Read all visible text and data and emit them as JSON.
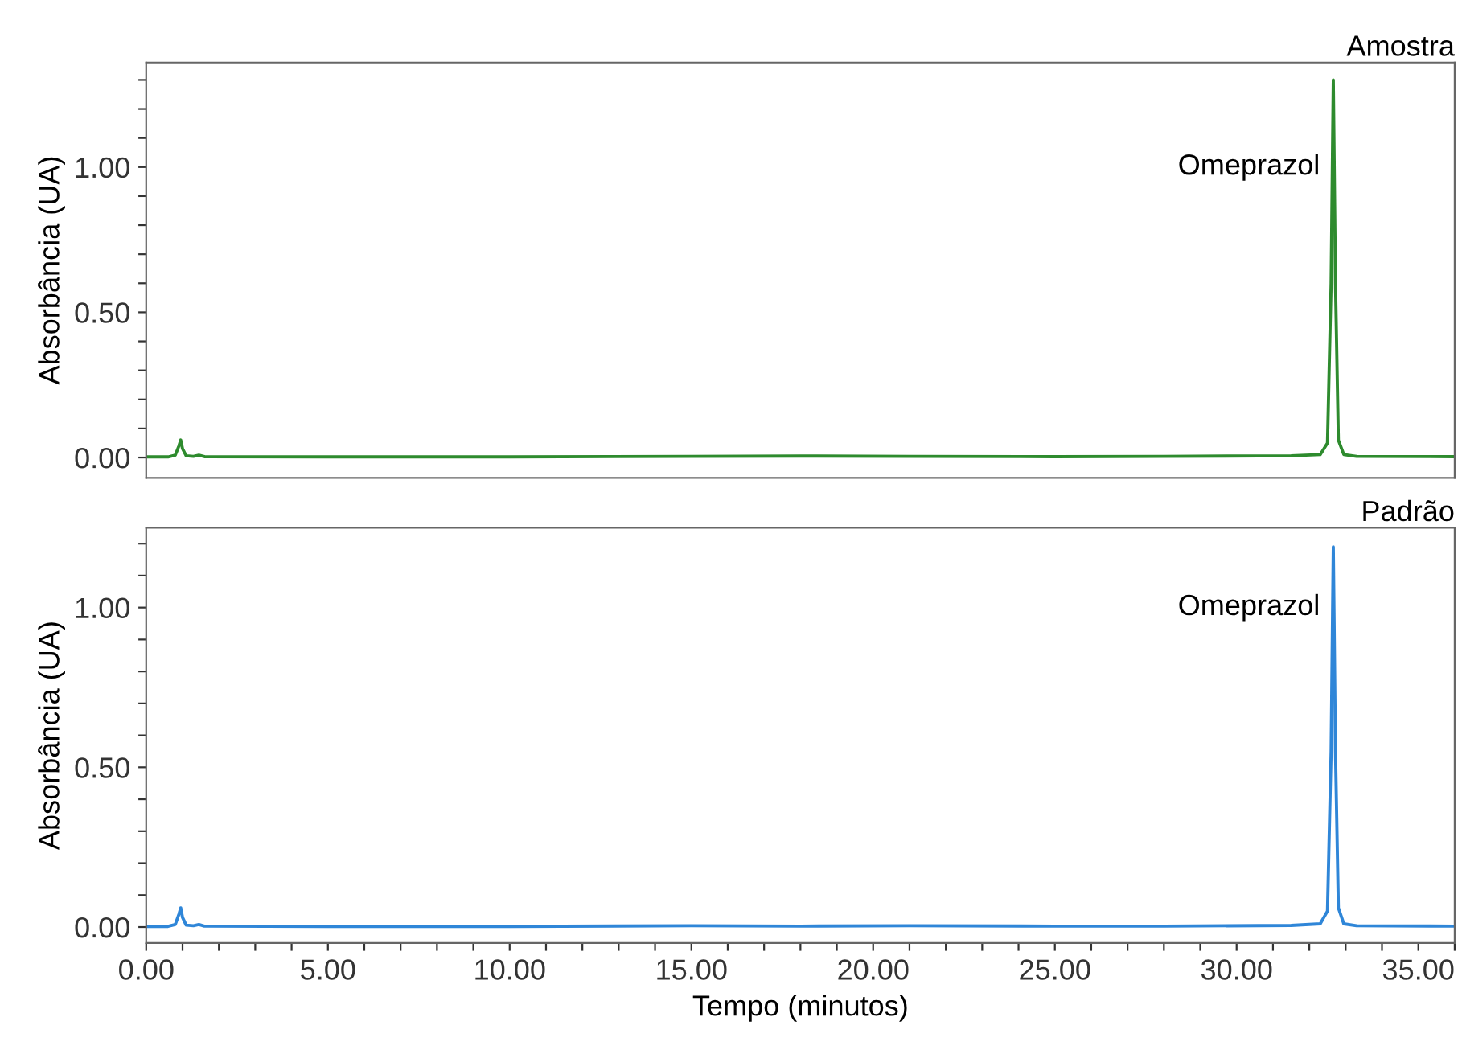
{
  "chart_data": [
    {
      "type": "line",
      "title": "Amostra",
      "ylabel": "Absorbância (UA)",
      "series": [
        {
          "color": "#2e8b2e",
          "x": [
            0,
            0.6,
            0.8,
            0.9,
            0.95,
            1.0,
            1.1,
            1.3,
            1.45,
            1.6,
            5,
            10,
            15,
            18,
            21,
            25,
            28,
            31.5,
            32.3,
            32.5,
            32.6,
            32.66,
            32.72,
            32.8,
            32.95,
            33.3,
            36
          ],
          "values": [
            0.002,
            0.002,
            0.008,
            0.04,
            0.06,
            0.03,
            0.006,
            0.004,
            0.008,
            0.003,
            0.002,
            0.002,
            0.004,
            0.005,
            0.004,
            0.003,
            0.004,
            0.006,
            0.01,
            0.05,
            0.6,
            1.3,
            0.6,
            0.06,
            0.01,
            0.004,
            0.003
          ]
        }
      ],
      "annotations": [
        {
          "text": "Omeprazol",
          "x": 32.66,
          "y": 1.0
        }
      ],
      "xlim": [
        0,
        36
      ],
      "ylim": [
        -0.07,
        1.36
      ],
      "yticks": [
        {
          "value": 0,
          "label": "0.00"
        },
        {
          "value": 0.1,
          "label": null
        },
        {
          "value": 0.2,
          "label": null
        },
        {
          "value": 0.3,
          "label": null
        },
        {
          "value": 0.4,
          "label": null
        },
        {
          "value": 0.5,
          "label": "0.50"
        },
        {
          "value": 0.6,
          "label": null
        },
        {
          "value": 0.7,
          "label": null
        },
        {
          "value": 0.8,
          "label": null
        },
        {
          "value": 0.9,
          "label": null
        },
        {
          "value": 1.0,
          "label": "1.00"
        },
        {
          "value": 1.1,
          "label": null
        },
        {
          "value": 1.2,
          "label": null
        },
        {
          "value": 1.3,
          "label": null
        }
      ],
      "tick_labels": "y",
      "grid": false,
      "legend": false
    },
    {
      "type": "line",
      "title": "Padrão",
      "xlabel": "Tempo (minutos)",
      "ylabel": "Absorbância (UA)",
      "series": [
        {
          "color": "#2f86d8",
          "x": [
            0,
            0.6,
            0.8,
            0.9,
            0.95,
            1.0,
            1.1,
            1.3,
            1.45,
            1.6,
            5,
            10,
            15,
            18,
            21,
            25,
            28,
            31.5,
            32.3,
            32.5,
            32.6,
            32.66,
            32.72,
            32.8,
            32.95,
            33.3,
            36
          ],
          "values": [
            0.002,
            0.002,
            0.008,
            0.04,
            0.06,
            0.03,
            0.006,
            0.004,
            0.008,
            0.003,
            0.002,
            0.002,
            0.004,
            0.003,
            0.004,
            0.003,
            0.003,
            0.005,
            0.01,
            0.05,
            0.55,
            1.19,
            0.55,
            0.06,
            0.01,
            0.004,
            0.003
          ]
        }
      ],
      "annotations": [
        {
          "text": "Omeprazol",
          "x": 32.66,
          "y": 1.0
        }
      ],
      "xlim": [
        0,
        36
      ],
      "ylim": [
        -0.05,
        1.25
      ],
      "xticks": [
        {
          "value": 0,
          "label": "0.00"
        },
        {
          "value": 1,
          "label": null
        },
        {
          "value": 2,
          "label": null
        },
        {
          "value": 3,
          "label": null
        },
        {
          "value": 4,
          "label": null
        },
        {
          "value": 5,
          "label": "5.00"
        },
        {
          "value": 6,
          "label": null
        },
        {
          "value": 7,
          "label": null
        },
        {
          "value": 8,
          "label": null
        },
        {
          "value": 9,
          "label": null
        },
        {
          "value": 10,
          "label": "10.00"
        },
        {
          "value": 11,
          "label": null
        },
        {
          "value": 12,
          "label": null
        },
        {
          "value": 13,
          "label": null
        },
        {
          "value": 14,
          "label": null
        },
        {
          "value": 15,
          "label": "15.00"
        },
        {
          "value": 16,
          "label": null
        },
        {
          "value": 17,
          "label": null
        },
        {
          "value": 18,
          "label": null
        },
        {
          "value": 19,
          "label": null
        },
        {
          "value": 20,
          "label": "20.00"
        },
        {
          "value": 21,
          "label": null
        },
        {
          "value": 22,
          "label": null
        },
        {
          "value": 23,
          "label": null
        },
        {
          "value": 24,
          "label": null
        },
        {
          "value": 25,
          "label": "25.00"
        },
        {
          "value": 26,
          "label": null
        },
        {
          "value": 27,
          "label": null
        },
        {
          "value": 28,
          "label": null
        },
        {
          "value": 29,
          "label": null
        },
        {
          "value": 30,
          "label": "30.00"
        },
        {
          "value": 31,
          "label": null
        },
        {
          "value": 32,
          "label": null
        },
        {
          "value": 33,
          "label": null
        },
        {
          "value": 34,
          "label": null
        },
        {
          "value": 35,
          "label": "35.00"
        },
        {
          "value": 36,
          "label": null
        }
      ],
      "yticks": [
        {
          "value": 0,
          "label": "0.00"
        },
        {
          "value": 0.1,
          "label": null
        },
        {
          "value": 0.2,
          "label": null
        },
        {
          "value": 0.3,
          "label": null
        },
        {
          "value": 0.4,
          "label": null
        },
        {
          "value": 0.5,
          "label": "0.50"
        },
        {
          "value": 0.6,
          "label": null
        },
        {
          "value": 0.7,
          "label": null
        },
        {
          "value": 0.8,
          "label": null
        },
        {
          "value": 0.9,
          "label": null
        },
        {
          "value": 1.0,
          "label": "1.00"
        },
        {
          "value": 1.1,
          "label": null
        },
        {
          "value": 1.2,
          "label": null
        }
      ],
      "grid": false,
      "legend": false
    }
  ]
}
